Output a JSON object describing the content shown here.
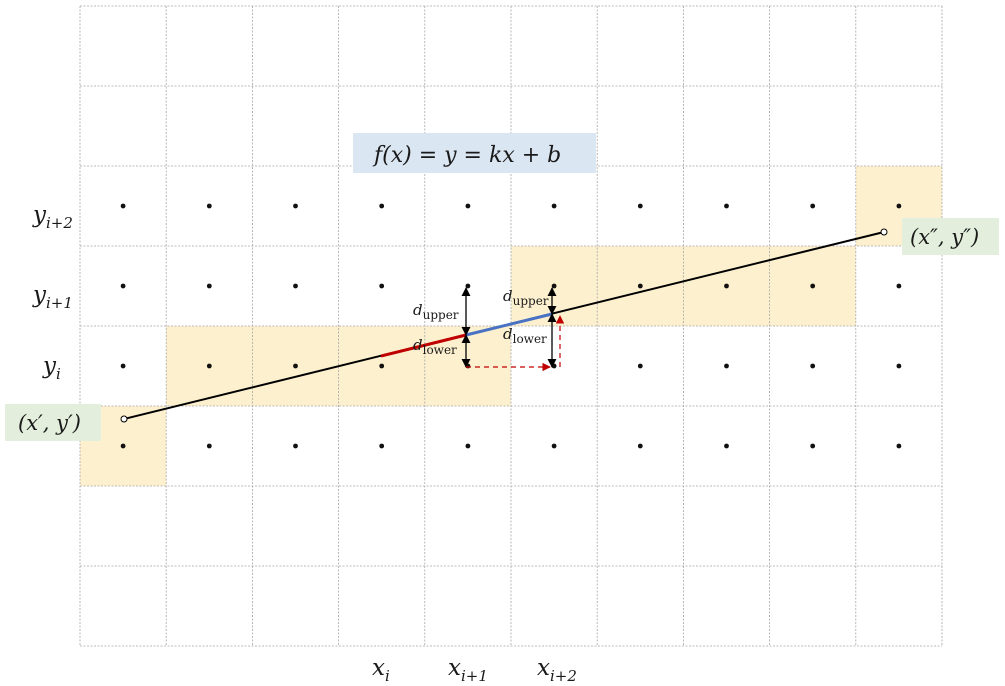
{
  "formula": {
    "lhs": "f(x) = y = ",
    "k": "k",
    "rhs": "x + b",
    "k_color": "#e8201c",
    "box_color": "#dbe6f3"
  },
  "grid": {
    "cols": 10,
    "rows": 8,
    "line_color": "#a6a6a6",
    "dot_color": "#111111"
  },
  "highlight_color": "#fdf0cf",
  "point_label_bg": "#e3efdc",
  "start_point": {
    "label": "(x′, y′)"
  },
  "end_point": {
    "label": "(x″, y″)"
  },
  "x_labels": [
    {
      "base": "x",
      "sub": "i"
    },
    {
      "base": "x",
      "sub": "i+1"
    },
    {
      "base": "x",
      "sub": "i+2"
    }
  ],
  "y_labels": [
    {
      "base": "y",
      "sub": "i+2"
    },
    {
      "base": "y",
      "sub": "i+1"
    },
    {
      "base": "y",
      "sub": "i"
    }
  ],
  "annotations": {
    "d_upper_1": {
      "base": "d",
      "sub": "upper"
    },
    "d_lower_1": {
      "base": "d",
      "sub": "lower"
    },
    "d_upper_2": {
      "base": "d",
      "sub": "upper"
    },
    "d_lower_2": {
      "base": "d",
      "sub": "lower"
    }
  },
  "segment_colors": {
    "line": "#000000",
    "red_segment": "#c00000",
    "blue_segment": "#4a72c4",
    "dashed_arrow": "#c00000"
  }
}
